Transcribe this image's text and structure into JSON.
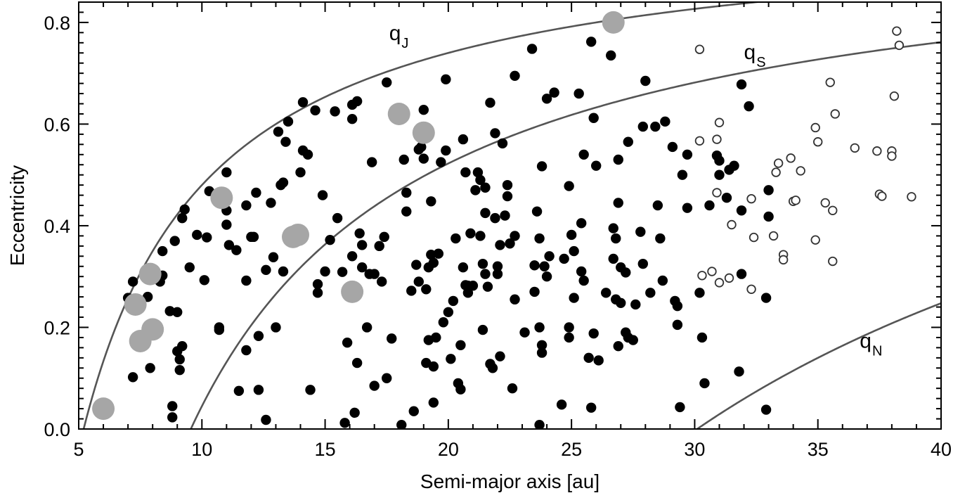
{
  "chart_data": {
    "type": "scatter",
    "title": "",
    "xlabel": "Semi-major axis [au]",
    "ylabel": "Eccentricity",
    "xlim": [
      5,
      40
    ],
    "ylim": [
      0,
      0.84
    ],
    "xticks": [
      5,
      10,
      15,
      20,
      25,
      30,
      35,
      40
    ],
    "xtick_labels": [
      "5",
      "10",
      "15",
      "20",
      "25",
      "30",
      "35",
      "40"
    ],
    "yticks": [
      0.0,
      0.2,
      0.4,
      0.6,
      0.8
    ],
    "ytick_labels": [
      "0.0",
      "0.2",
      "0.4",
      "0.6",
      "0.8"
    ],
    "grid": false,
    "legend": "none",
    "curves": [
      {
        "label": "q",
        "sub": "J",
        "q": 5.2,
        "color": "#555555",
        "label_x": 17.6,
        "label_y": 0.765
      },
      {
        "label": "q",
        "sub": "S",
        "q": 9.55,
        "color": "#555555",
        "label_x": 32.0,
        "label_y": 0.728
      },
      {
        "label": "q",
        "sub": "N",
        "q": 30.1,
        "color": "#555555",
        "label_x": 36.7,
        "label_y": 0.16
      }
    ],
    "series": [
      {
        "marker": "large-gray",
        "color": "#a6a6a6",
        "points": [
          [
            6.0,
            0.04
          ],
          [
            7.3,
            0.245
          ],
          [
            7.5,
            0.173
          ],
          [
            7.9,
            0.305
          ],
          [
            8.0,
            0.196
          ],
          [
            10.8,
            0.455
          ],
          [
            13.7,
            0.378
          ],
          [
            13.9,
            0.382
          ],
          [
            16.1,
            0.27
          ],
          [
            18.0,
            0.62
          ],
          [
            19.0,
            0.583
          ],
          [
            26.7,
            0.8
          ]
        ]
      },
      {
        "marker": "open-circle",
        "color": "#333333",
        "points": [
          [
            30.2,
            0.747
          ],
          [
            30.2,
            0.567
          ],
          [
            30.3,
            0.302
          ],
          [
            30.7,
            0.31
          ],
          [
            30.9,
            0.465
          ],
          [
            30.9,
            0.57
          ],
          [
            31.0,
            0.288
          ],
          [
            31.0,
            0.603
          ],
          [
            31.4,
            0.297
          ],
          [
            31.5,
            0.402
          ],
          [
            32.3,
            0.453
          ],
          [
            32.3,
            0.275
          ],
          [
            32.4,
            0.377
          ],
          [
            33.2,
            0.38
          ],
          [
            33.3,
            0.505
          ],
          [
            33.4,
            0.523
          ],
          [
            33.6,
            0.343
          ],
          [
            33.6,
            0.333
          ],
          [
            33.9,
            0.533
          ],
          [
            34.0,
            0.448
          ],
          [
            34.1,
            0.45
          ],
          [
            34.3,
            0.508
          ],
          [
            34.9,
            0.372
          ],
          [
            34.9,
            0.593
          ],
          [
            35.0,
            0.565
          ],
          [
            35.3,
            0.445
          ],
          [
            35.5,
            0.682
          ],
          [
            35.6,
            0.43
          ],
          [
            35.6,
            0.33
          ],
          [
            35.7,
            0.62
          ],
          [
            36.5,
            0.553
          ],
          [
            37.4,
            0.547
          ],
          [
            37.5,
            0.462
          ],
          [
            37.6,
            0.458
          ],
          [
            38.0,
            0.547
          ],
          [
            38.0,
            0.537
          ],
          [
            38.1,
            0.655
          ],
          [
            38.2,
            0.783
          ],
          [
            38.3,
            0.755
          ],
          [
            38.8,
            0.457
          ]
        ]
      },
      {
        "marker": "filled-circle",
        "color": "#000000",
        "points": [
          [
            7.0,
            0.258
          ],
          [
            7.2,
            0.29
          ],
          [
            7.2,
            0.102
          ],
          [
            7.8,
            0.26
          ],
          [
            7.9,
            0.12
          ],
          [
            8.3,
            0.29
          ],
          [
            8.4,
            0.302
          ],
          [
            8.4,
            0.35
          ],
          [
            8.7,
            0.232
          ],
          [
            8.8,
            0.045
          ],
          [
            8.8,
            0.023
          ],
          [
            8.9,
            0.37
          ],
          [
            9.0,
            0.23
          ],
          [
            9.0,
            0.153
          ],
          [
            9.1,
            0.137
          ],
          [
            9.1,
            0.116
          ],
          [
            9.2,
            0.163
          ],
          [
            9.2,
            0.415
          ],
          [
            9.3,
            0.432
          ],
          [
            9.5,
            0.318
          ],
          [
            9.8,
            0.382
          ],
          [
            10.1,
            0.293
          ],
          [
            10.2,
            0.377
          ],
          [
            10.3,
            0.468
          ],
          [
            10.7,
            0.195
          ],
          [
            10.7,
            0.2
          ],
          [
            11.0,
            0.505
          ],
          [
            11.0,
            0.43
          ],
          [
            11.0,
            0.402
          ],
          [
            11.1,
            0.362
          ],
          [
            11.4,
            0.352
          ],
          [
            11.5,
            0.075
          ],
          [
            11.8,
            0.292
          ],
          [
            11.8,
            0.155
          ],
          [
            11.8,
            0.44
          ],
          [
            12.0,
            0.378
          ],
          [
            12.1,
            0.378
          ],
          [
            12.2,
            0.465
          ],
          [
            12.3,
            0.077
          ],
          [
            12.3,
            0.183
          ],
          [
            12.6,
            0.018
          ],
          [
            12.6,
            0.313
          ],
          [
            12.8,
            0.445
          ],
          [
            12.9,
            0.338
          ],
          [
            13.0,
            0.2
          ],
          [
            13.1,
            0.585
          ],
          [
            13.2,
            0.48
          ],
          [
            13.3,
            0.485
          ],
          [
            13.3,
            0.31
          ],
          [
            13.4,
            0.565
          ],
          [
            13.5,
            0.605
          ],
          [
            14.0,
            0.505
          ],
          [
            14.1,
            0.548
          ],
          [
            14.3,
            0.54
          ],
          [
            14.1,
            0.643
          ],
          [
            14.4,
            0.077
          ],
          [
            14.6,
            0.627
          ],
          [
            14.7,
            0.268
          ],
          [
            14.7,
            0.285
          ],
          [
            14.9,
            0.46
          ],
          [
            15.0,
            0.31
          ],
          [
            15.2,
            0.372
          ],
          [
            15.4,
            0.625
          ],
          [
            15.5,
            0.415
          ],
          [
            15.7,
            0.309
          ],
          [
            15.8,
            0.012
          ],
          [
            15.9,
            0.17
          ],
          [
            16.1,
            0.638
          ],
          [
            16.1,
            0.61
          ],
          [
            16.1,
            0.34
          ],
          [
            16.2,
            0.032
          ],
          [
            16.3,
            0.13
          ],
          [
            16.3,
            0.645
          ],
          [
            16.4,
            0.385
          ],
          [
            16.5,
            0.362
          ],
          [
            16.5,
            0.318
          ],
          [
            16.7,
            0.2
          ],
          [
            16.8,
            0.305
          ],
          [
            16.9,
            0.525
          ],
          [
            17.0,
            0.085
          ],
          [
            17.0,
            0.305
          ],
          [
            17.2,
            0.36
          ],
          [
            17.3,
            0.29
          ],
          [
            17.4,
            0.378
          ],
          [
            17.5,
            0.1
          ],
          [
            17.5,
            0.682
          ],
          [
            17.7,
            0.178
          ],
          [
            18.1,
            0.008
          ],
          [
            18.2,
            0.53
          ],
          [
            18.3,
            0.428
          ],
          [
            18.3,
            0.465
          ],
          [
            18.5,
            0.272
          ],
          [
            18.6,
            0.035
          ],
          [
            18.7,
            0.323
          ],
          [
            18.8,
            0.55
          ],
          [
            18.8,
            0.29
          ],
          [
            18.9,
            0.555
          ],
          [
            19.0,
            0.628
          ],
          [
            19.0,
            0.532
          ],
          [
            19.1,
            0.13
          ],
          [
            19.1,
            0.275
          ],
          [
            19.2,
            0.175
          ],
          [
            19.2,
            0.318
          ],
          [
            19.3,
            0.343
          ],
          [
            19.3,
            0.448
          ],
          [
            19.4,
            0.123
          ],
          [
            19.4,
            0.327
          ],
          [
            19.4,
            0.052
          ],
          [
            19.5,
            0.18
          ],
          [
            19.6,
            0.345
          ],
          [
            19.7,
            0.525
          ],
          [
            19.8,
            0.21
          ],
          [
            19.9,
            0.548
          ],
          [
            19.9,
            0.688
          ],
          [
            20.0,
            0.23
          ],
          [
            20.1,
            0.138
          ],
          [
            20.2,
            0.252
          ],
          [
            20.3,
            0.375
          ],
          [
            20.4,
            0.09
          ],
          [
            20.5,
            0.078
          ],
          [
            20.5,
            0.165
          ],
          [
            20.6,
            0.318
          ],
          [
            20.6,
            0.57
          ],
          [
            20.7,
            0.505
          ],
          [
            20.7,
            0.283
          ],
          [
            20.8,
            0.268
          ],
          [
            20.8,
            0.282
          ],
          [
            20.9,
            0.385
          ],
          [
            21.0,
            0.282
          ],
          [
            21.1,
            0.47
          ],
          [
            21.2,
            0.505
          ],
          [
            21.3,
            0.38
          ],
          [
            21.3,
            0.49
          ],
          [
            21.4,
            0.325
          ],
          [
            21.4,
            0.195
          ],
          [
            21.5,
            0.305
          ],
          [
            21.5,
            0.425
          ],
          [
            21.5,
            0.475
          ],
          [
            21.6,
            0.28
          ],
          [
            21.7,
            0.642
          ],
          [
            21.7,
            0.128
          ],
          [
            21.8,
            0.12
          ],
          [
            21.9,
            0.415
          ],
          [
            21.9,
            0.582
          ],
          [
            22.0,
            0.32
          ],
          [
            22.0,
            0.305
          ],
          [
            22.1,
            0.143
          ],
          [
            22.1,
            0.362
          ],
          [
            22.2,
            0.562
          ],
          [
            22.3,
            0.42
          ],
          [
            22.4,
            0.458
          ],
          [
            22.4,
            0.48
          ],
          [
            22.5,
            0.365
          ],
          [
            22.6,
            0.08
          ],
          [
            22.7,
            0.255
          ],
          [
            22.7,
            0.38
          ],
          [
            22.7,
            0.695
          ],
          [
            23.1,
            0.19
          ],
          [
            23.4,
            0.748
          ],
          [
            23.5,
            0.27
          ],
          [
            23.5,
            0.322
          ],
          [
            23.6,
            0.428
          ],
          [
            23.7,
            0.2
          ],
          [
            23.7,
            0.008
          ],
          [
            23.7,
            0.375
          ],
          [
            23.8,
            0.15
          ],
          [
            23.8,
            0.165
          ],
          [
            23.8,
            0.517
          ],
          [
            23.9,
            0.32
          ],
          [
            24.0,
            0.3
          ],
          [
            24.0,
            0.65
          ],
          [
            24.1,
            0.34
          ],
          [
            24.3,
            0.662
          ],
          [
            24.6,
            0.048
          ],
          [
            24.7,
            0.335
          ],
          [
            24.9,
            0.2
          ],
          [
            24.9,
            0.18
          ],
          [
            24.9,
            0.478
          ],
          [
            25.0,
            0.382
          ],
          [
            25.1,
            0.258
          ],
          [
            25.1,
            0.35
          ],
          [
            25.3,
            0.66
          ],
          [
            25.4,
            0.31
          ],
          [
            25.4,
            0.405
          ],
          [
            25.5,
            0.54
          ],
          [
            25.5,
            0.292
          ],
          [
            25.7,
            0.14
          ],
          [
            25.8,
            0.042
          ],
          [
            25.8,
            0.762
          ],
          [
            25.9,
            0.612
          ],
          [
            25.9,
            0.188
          ],
          [
            26.0,
            0.518
          ],
          [
            26.1,
            0.135
          ],
          [
            26.4,
            0.268
          ],
          [
            26.6,
            0.735
          ],
          [
            26.7,
            0.335
          ],
          [
            26.7,
            0.395
          ],
          [
            26.8,
            0.375
          ],
          [
            26.8,
            0.255
          ],
          [
            26.9,
            0.163
          ],
          [
            26.9,
            0.445
          ],
          [
            26.9,
            0.53
          ],
          [
            27.0,
            0.248
          ],
          [
            27.0,
            0.318
          ],
          [
            27.2,
            0.308
          ],
          [
            27.2,
            0.19
          ],
          [
            27.3,
            0.18
          ],
          [
            27.3,
            0.565
          ],
          [
            27.5,
            0.175
          ],
          [
            27.6,
            0.245
          ],
          [
            27.8,
            0.388
          ],
          [
            27.9,
            0.325
          ],
          [
            27.9,
            0.595
          ],
          [
            28.0,
            0.685
          ],
          [
            28.2,
            0.268
          ],
          [
            28.4,
            0.595
          ],
          [
            28.5,
            0.44
          ],
          [
            28.6,
            0.375
          ],
          [
            28.7,
            0.292
          ],
          [
            28.8,
            0.605
          ],
          [
            29.1,
            0.555
          ],
          [
            29.2,
            0.252
          ],
          [
            29.3,
            0.242
          ],
          [
            29.3,
            0.205
          ],
          [
            29.4,
            0.043
          ],
          [
            29.5,
            0.5
          ],
          [
            29.7,
            0.435
          ],
          [
            29.7,
            0.54
          ],
          [
            30.2,
            0.268
          ],
          [
            30.3,
            0.18
          ],
          [
            30.4,
            0.09
          ],
          [
            30.6,
            0.44
          ],
          [
            30.9,
            0.538
          ],
          [
            31.0,
            0.528
          ],
          [
            31.0,
            0.5
          ],
          [
            31.3,
            0.455
          ],
          [
            31.4,
            0.51
          ],
          [
            31.6,
            0.518
          ],
          [
            31.8,
            0.113
          ],
          [
            31.9,
            0.43
          ],
          [
            31.9,
            0.305
          ],
          [
            31.9,
            0.678
          ],
          [
            32.2,
            0.635
          ],
          [
            32.9,
            0.258
          ],
          [
            32.9,
            0.038
          ],
          [
            33.0,
            0.47
          ],
          [
            33.0,
            0.418
          ]
        ]
      }
    ]
  }
}
